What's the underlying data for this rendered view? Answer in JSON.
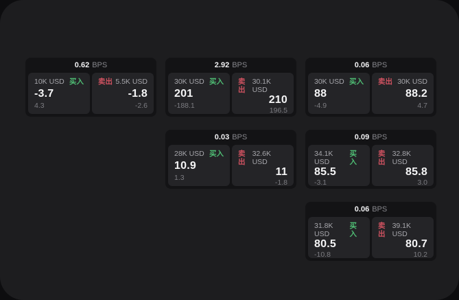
{
  "labels": {
    "bps_unit": "BPS",
    "buy": "买入",
    "sell": "卖出"
  },
  "colors": {
    "buy": "#4fbd74",
    "sell": "#cf5260",
    "panel_bg": "#1d1d1f",
    "card_bg": "#131315",
    "tile_bg": "#242427",
    "value_text": "#f5f5f6",
    "muted_text": "#7c7c81"
  },
  "cards": [
    {
      "row": 1,
      "col": 1,
      "bps": "0.62",
      "buy": {
        "amount": "10K USD",
        "value": "-3.7",
        "sub": "4.3"
      },
      "sell": {
        "amount": "5.5K USD",
        "value": "-1.8",
        "sub": "-2.6"
      }
    },
    {
      "row": 1,
      "col": 2,
      "bps": "2.92",
      "buy": {
        "amount": "30K USD",
        "value": "201",
        "sub": "-188.1"
      },
      "sell": {
        "amount": "30.1K USD",
        "value": "210",
        "sub": "196.5"
      }
    },
    {
      "row": 1,
      "col": 3,
      "bps": "0.06",
      "buy": {
        "amount": "30K USD",
        "value": "88",
        "sub": "-4.9"
      },
      "sell": {
        "amount": "30K USD",
        "value": "88.2",
        "sub": "4.7"
      }
    },
    {
      "row": 2,
      "col": 2,
      "bps": "0.03",
      "buy": {
        "amount": "28K USD",
        "value": "10.9",
        "sub": "1.3"
      },
      "sell": {
        "amount": "32.6K USD",
        "value": "11",
        "sub": "-1.8"
      }
    },
    {
      "row": 2,
      "col": 3,
      "bps": "0.09",
      "buy": {
        "amount": "34.1K USD",
        "value": "85.5",
        "sub": "-3.1"
      },
      "sell": {
        "amount": "32.8K USD",
        "value": "85.8",
        "sub": "3.0"
      }
    },
    {
      "row": 3,
      "col": 3,
      "bps": "0.06",
      "buy": {
        "amount": "31.8K USD",
        "value": "80.5",
        "sub": "-10.8"
      },
      "sell": {
        "amount": "39.1K USD",
        "value": "80.7",
        "sub": "10.2"
      }
    }
  ]
}
